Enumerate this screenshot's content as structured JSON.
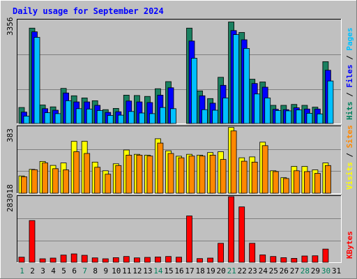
{
  "chart_data": {
    "type": "bar",
    "title": "Daily usage for September 2024",
    "categories": [
      "1",
      "2",
      "3",
      "4",
      "5",
      "6",
      "7",
      "8",
      "9",
      "10",
      "11",
      "12",
      "13",
      "14",
      "15",
      "16",
      "17",
      "18",
      "19",
      "20",
      "21",
      "22",
      "23",
      "24",
      "25",
      "26",
      "27",
      "28",
      "29",
      "30",
      "31"
    ],
    "weekend_days": [
      1,
      7,
      14,
      21,
      28,
      30
    ],
    "panels": [
      {
        "id": "hits-panel",
        "max_label": "3356",
        "ymax": 3356,
        "legend": [
          {
            "text": "Hits",
            "color": "#00805c"
          },
          {
            "text": " / ",
            "color": "#000000"
          },
          {
            "text": "Files",
            "color": "#0000ff"
          },
          {
            "text": " / ",
            "color": "#000000"
          },
          {
            "text": "Pages",
            "color": "#00c0ff"
          }
        ],
        "series": [
          {
            "name": "Hits",
            "color": "#1a8060",
            "values": [
              520,
              3100,
              600,
              540,
              1140,
              900,
              830,
              740,
              450,
              490,
              920,
              910,
              880,
              1130,
              1360,
              0,
              3100,
              1060,
              810,
              1500,
              3300,
              2960,
              1440,
              1350,
              590,
              590,
              620,
              590,
              530,
              2010,
              0
            ]
          },
          {
            "name": "Files",
            "color": "#0000ff",
            "values": [
              370,
              2980,
              480,
              430,
              990,
              700,
              700,
              590,
              360,
              380,
              730,
              700,
              680,
              920,
              1160,
              0,
              2680,
              900,
              660,
              1240,
              3020,
              2720,
              1300,
              1180,
              460,
              450,
              510,
              470,
              470,
              1730,
              0
            ]
          },
          {
            "name": "Pages",
            "color": "#00c0ff",
            "values": [
              240,
              2800,
              350,
              320,
              740,
              480,
              470,
              420,
              260,
              270,
              390,
              340,
              320,
              520,
              480,
              0,
              2120,
              450,
              430,
              830,
              2890,
              2440,
              960,
              830,
              420,
              410,
              440,
              330,
              310,
              1380,
              0
            ]
          }
        ]
      },
      {
        "id": "visits-panel",
        "max_label": "383",
        "ymax": 383,
        "legend": [
          {
            "text": "Visits",
            "color": "#ffff00"
          },
          {
            "text": " / ",
            "color": "#000000"
          },
          {
            "text": "Sites",
            "color": "#ff8800"
          }
        ],
        "series": [
          {
            "name": "Visits",
            "color": "#ffff00",
            "values": [
              100,
              138,
              184,
              161,
              175,
              300,
              300,
              180,
              130,
              170,
              250,
              225,
              220,
              315,
              245,
              214,
              225,
              220,
              235,
              240,
              380,
              205,
              210,
              295,
              130,
              90,
              155,
              155,
              135,
              175,
              0
            ]
          },
          {
            "name": "Sites",
            "color": "#ff8800",
            "values": [
              95,
              136,
              175,
              142,
              135,
              240,
              230,
              150,
              110,
              160,
              220,
              220,
              215,
              290,
              230,
              205,
              215,
              215,
              220,
              195,
              360,
              185,
              180,
              275,
              125,
              85,
              130,
              125,
              115,
              160,
              0
            ]
          }
        ]
      },
      {
        "id": "kbytes-panel",
        "max_label": "283018",
        "ymax": 283018,
        "legend": [
          {
            "text": "KBytes",
            "color": "#ff0000"
          }
        ],
        "series": [
          {
            "name": "KBytes",
            "color": "#ff0000",
            "values": [
              22000,
              180000,
              15000,
              18000,
              31000,
              36000,
              30000,
              19000,
              15000,
              20000,
              25000,
              19000,
              21000,
              23000,
              25000,
              22000,
              200000,
              16000,
              18000,
              82000,
              283018,
              239000,
              82000,
              32000,
              25000,
              20000,
              17000,
              27000,
              28000,
              57000,
              0
            ]
          }
        ]
      }
    ]
  }
}
